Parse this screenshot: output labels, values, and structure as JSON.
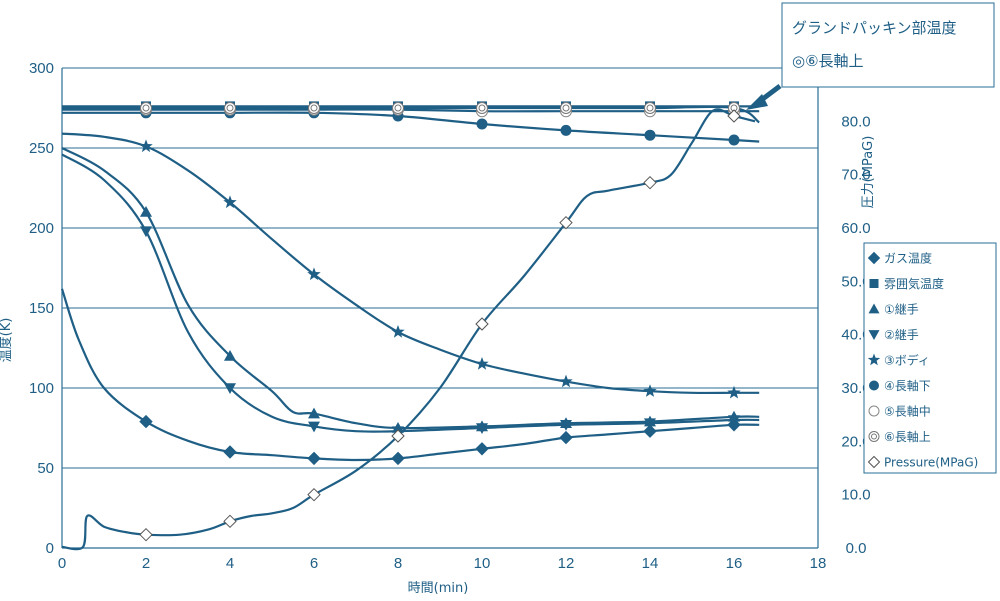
{
  "chart_data": {
    "type": "line",
    "xlabel": "時間(min)",
    "ylabel_left": "温度(K)",
    "ylabel_right": "圧力(MPaG)",
    "xlim": [
      0,
      18
    ],
    "ylim_left": [
      0,
      300
    ],
    "ylim_right": [
      0,
      90
    ],
    "x_ticks": [
      "0",
      "2",
      "4",
      "6",
      "8",
      "10",
      "12",
      "14",
      "16",
      "18"
    ],
    "y_ticks_left": [
      "0",
      "50",
      "100",
      "150",
      "200",
      "250",
      "300"
    ],
    "y_ticks_right": [
      "0.0",
      "10.0",
      "20.0",
      "30.0",
      "40.0",
      "50.0",
      "60.0",
      "70.0",
      "80.0"
    ],
    "grid": "horizontal",
    "legend_position": "right",
    "colors": {
      "series": "#1f5f86",
      "grid": "#2a6e96",
      "background": "#ffffff"
    },
    "series": [
      {
        "name": "ガス温度",
        "marker": "diamond-filled",
        "axis": "left",
        "x": [
          0,
          0.4,
          1,
          2,
          3,
          4,
          5,
          6,
          7,
          8,
          9,
          10,
          11,
          12,
          13,
          14,
          15,
          16,
          16.6
        ],
        "y": [
          162,
          130,
          100,
          79,
          67,
          60,
          58,
          56,
          55,
          56,
          59,
          62,
          65,
          69,
          71,
          73,
          75,
          77,
          77
        ]
      },
      {
        "name": "雰囲気温度",
        "marker": "square-filled",
        "axis": "left",
        "x": [
          0,
          2,
          4,
          6,
          8,
          10,
          12,
          14,
          16,
          16.6
        ],
        "y": [
          276,
          276,
          276,
          276,
          276,
          276,
          276,
          276,
          276,
          276
        ]
      },
      {
        "name": "①継手",
        "marker": "triangle-up-filled",
        "axis": "left",
        "x": [
          0,
          1,
          2,
          3,
          4,
          5,
          5.5,
          6,
          7,
          8,
          10,
          12,
          14,
          16,
          16.6
        ],
        "y": [
          250,
          236,
          210,
          152,
          120,
          98,
          85,
          84,
          78,
          75,
          76,
          78,
          79,
          82,
          82
        ]
      },
      {
        "name": "②継手",
        "marker": "triangle-down-filled",
        "axis": "left",
        "x": [
          0,
          1,
          2,
          3,
          4,
          5,
          6,
          7,
          8,
          10,
          12,
          14,
          16,
          16.6
        ],
        "y": [
          246,
          230,
          198,
          135,
          100,
          82,
          76,
          73,
          73,
          75,
          77,
          78,
          80,
          80
        ]
      },
      {
        "name": "③ボディ",
        "marker": "star-filled",
        "axis": "left",
        "x": [
          0,
          1,
          2,
          3,
          4,
          5,
          6,
          7,
          8,
          9,
          10,
          11,
          12,
          13,
          14,
          15,
          16,
          16.6
        ],
        "y": [
          259,
          257,
          251,
          236,
          216,
          193,
          171,
          152,
          135,
          124,
          115,
          109,
          104,
          100,
          98,
          97,
          97,
          97
        ]
      },
      {
        "name": "④長軸下",
        "marker": "circle-filled",
        "axis": "left",
        "x": [
          0,
          2,
          4,
          6,
          8,
          10,
          12,
          14,
          16,
          16.6
        ],
        "y": [
          272,
          272,
          272,
          272,
          270,
          265,
          261,
          258,
          255,
          254
        ]
      },
      {
        "name": "⑤長軸中",
        "marker": "circle-open",
        "axis": "left",
        "x": [
          0,
          2,
          4,
          6,
          8,
          10,
          12,
          14,
          16,
          16.6
        ],
        "y": [
          274,
          274,
          274,
          274,
          274,
          273,
          273,
          273,
          273,
          273
        ]
      },
      {
        "name": "⑥長軸上",
        "marker": "double-circle",
        "axis": "left",
        "x": [
          0,
          2,
          4,
          6,
          8,
          10,
          12,
          14,
          16,
          16.6
        ],
        "y": [
          275,
          275,
          275,
          275,
          275,
          275,
          275,
          275,
          275,
          266
        ]
      },
      {
        "name": "Pressure(MPaG)",
        "marker": "diamond-open",
        "axis": "right",
        "x": [
          0,
          0.5,
          0.6,
          1,
          1.5,
          2,
          2.8,
          3.5,
          4,
          4.5,
          5,
          5.5,
          6,
          7,
          8,
          9,
          10,
          11,
          12,
          12.5,
          13,
          14,
          14.5,
          15,
          15.5,
          16,
          16.5
        ],
        "y": [
          0.2,
          0.2,
          6,
          4,
          3,
          2.5,
          2.5,
          3.5,
          5,
          6,
          6.5,
          7.5,
          10,
          14.5,
          21,
          30,
          42,
          51,
          61,
          66,
          67,
          68.5,
          70,
          76,
          82,
          81,
          80
        ]
      }
    ],
    "annotation": {
      "line1": "グランドパッキン部温度",
      "line2": "◎⑥長軸上",
      "points_to": "⑥長軸上"
    }
  }
}
